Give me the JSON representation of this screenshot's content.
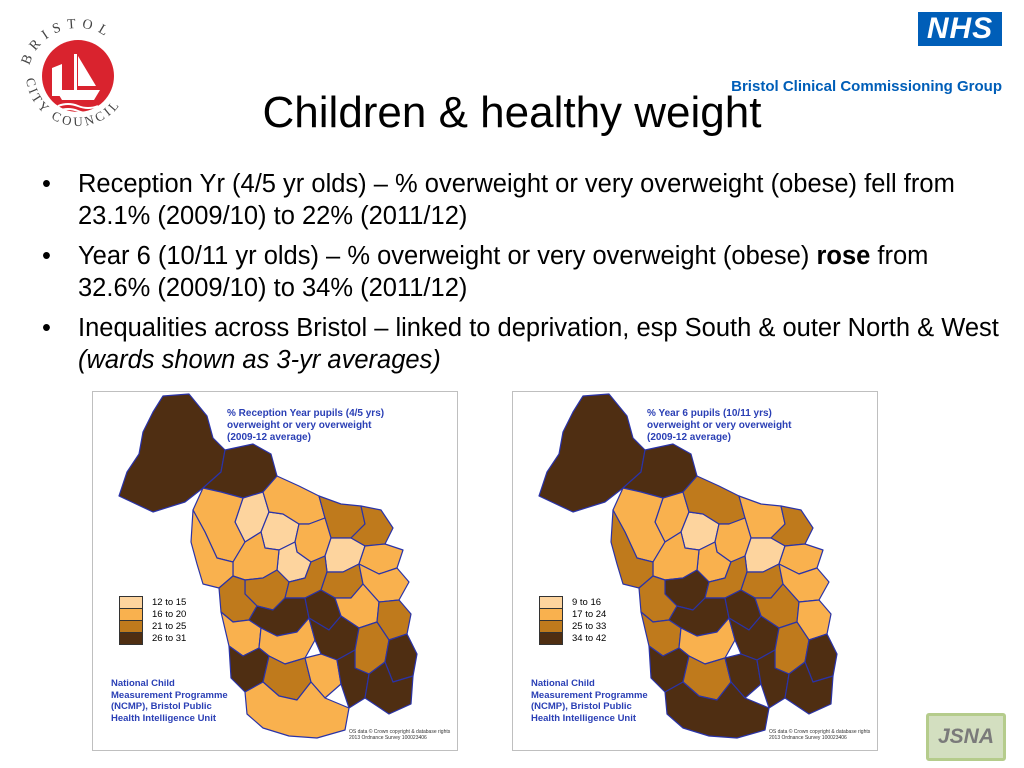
{
  "header": {
    "council_logo_text": "BRISTOL CITY COUNCIL",
    "nhs_logo": "NHS",
    "ccg_name": "Bristol Clinical Commissioning Group"
  },
  "slide": {
    "title": "Children & healthy weight",
    "bullets": [
      {
        "text": "Reception Yr (4/5 yr olds) – % overweight or very overweight (obese) fell from 23.1% (2009/10) to 22% (2011/12)"
      },
      {
        "pre": "Year 6 (10/11 yr olds) – % overweight or very overweight (obese) ",
        "bold": "rose",
        "post": " from 32.6% (2009/10) to 34% (2011/12)"
      },
      {
        "pre": "Inequalities across Bristol – linked to deprivation, esp South & outer North & West ",
        "italic": "(wards shown as 3-yr averages)"
      }
    ]
  },
  "colors": {
    "class1": "#fdd49e",
    "class2": "#f9b14e",
    "class3": "#bf7a1c",
    "class4": "#4f2e12",
    "ward_border": "#2a33a8",
    "title_blue": "#2a3fb5",
    "nhs_blue": "#005eb8"
  },
  "maps": [
    {
      "title_lines": [
        "% Reception Year pupils (4/5 yrs)",
        "overweight or very overweight",
        "(2009-12 average)"
      ],
      "legend": [
        "12 to 15",
        "16 to 20",
        "21 to 25",
        "26 to 31"
      ],
      "source_lines": [
        "National Child",
        "Measurement Programme",
        "(NCMP), Bristol Public",
        "Health Intelligence Unit"
      ],
      "credit": "OS data © Crown copyright & database rights 2013 Ordnance Survey 100023406",
      "ward_classes": [
        4,
        4,
        1,
        2,
        1,
        2,
        3,
        2,
        3,
        1,
        2,
        1,
        2,
        2,
        3,
        3,
        3,
        2,
        3,
        4,
        4,
        2,
        3,
        2,
        2,
        4,
        3,
        4,
        4,
        3,
        2,
        4,
        4,
        2
      ]
    },
    {
      "title_lines": [
        "% Year 6 pupils (10/11 yrs)",
        "overweight or very overweight",
        "(2009-12 average)"
      ],
      "legend": [
        "9 to 16",
        "17 to 24",
        "25 to 33",
        "34 to 42"
      ],
      "source_lines": [
        "National Child",
        "Measurement Programme",
        "(NCMP), Bristol Public",
        "Health Intelligence Unit"
      ],
      "credit": "OS data © Crown copyright & database rights 2013 Ordnance Survey 100023406",
      "ward_classes": [
        4,
        4,
        2,
        2,
        1,
        3,
        2,
        2,
        3,
        2,
        2,
        1,
        2,
        3,
        4,
        3,
        3,
        2,
        3,
        4,
        4,
        3,
        2,
        3,
        2,
        4,
        3,
        4,
        4,
        3,
        4,
        4,
        4,
        4
      ]
    }
  ],
  "footer": {
    "badge": "JSNA"
  }
}
